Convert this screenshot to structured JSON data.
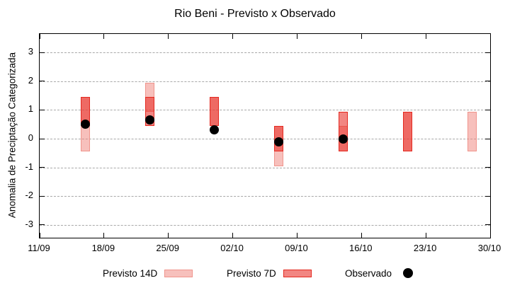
{
  "title": "Rio Beni - Previsto x Observado",
  "legend": {
    "items": [
      {
        "label": "Previsto 14D",
        "swatch": "pink-box"
      },
      {
        "label": "Previsto 7D",
        "swatch": "red-box"
      },
      {
        "label": "Observado",
        "swatch": "black-dot"
      }
    ]
  },
  "colors": {
    "previsto14_fill": "#f7c0bc",
    "previsto14_border": "#f0948c",
    "previsto7_fill": "#f28682",
    "previsto7_border": "#e42920",
    "observado": "#000000",
    "grid": "#a8a8a8",
    "axis": "#000000"
  },
  "chart_data": {
    "type": "bar",
    "subtype": "forecast-range-bars-with-observations",
    "title": "Rio Beni - Previsto x Observado",
    "x_axis": {
      "range_days": [
        0,
        49
      ],
      "ticks": [
        {
          "label": "11/09",
          "day": 0
        },
        {
          "label": "18/09",
          "day": 7
        },
        {
          "label": "25/09",
          "day": 14
        },
        {
          "label": "02/10",
          "day": 21
        },
        {
          "label": "09/10",
          "day": 28
        },
        {
          "label": "16/10",
          "day": 35
        },
        {
          "label": "23/10",
          "day": 42
        },
        {
          "label": "30/10",
          "day": 49
        }
      ]
    },
    "y_axis": {
      "label": "Anomalia de Preciptação Categorizada",
      "ticks": [
        3,
        2,
        1,
        0,
        -1,
        -2,
        -3
      ],
      "range": [
        -3.45,
        3.65
      ],
      "grid": true
    },
    "series": [
      {
        "name": "Previsto 14D",
        "type": "range-bar",
        "points": [
          {
            "date": "16/09",
            "day": 5,
            "high": 1.45,
            "low": -0.45
          },
          {
            "date": "23/09",
            "day": 12,
            "high": 1.95,
            "low": 0.95
          },
          {
            "date": "30/09",
            "day": 19,
            "high": 1.45,
            "low": 0.45
          },
          {
            "date": "07/10",
            "day": 26,
            "high": 0.45,
            "low": -0.95
          },
          {
            "date": "14/10",
            "day": 33,
            "high": 0.45,
            "low": -0.45
          },
          {
            "date": "21/10",
            "day": 40,
            "high": 0.95,
            "low": -0.45
          },
          {
            "date": "28/10",
            "day": 47,
            "high": 0.95,
            "low": -0.45
          }
        ]
      },
      {
        "name": "Previsto 7D",
        "type": "range-bar",
        "points": [
          {
            "date": "16/09",
            "day": 5,
            "high": 1.45,
            "low": 0.45
          },
          {
            "date": "23/09",
            "day": 12,
            "high": 1.45,
            "low": 0.45
          },
          {
            "date": "30/09",
            "day": 19,
            "high": 1.45,
            "low": 0.45
          },
          {
            "date": "07/10",
            "day": 26,
            "high": 0.45,
            "low": -0.45
          },
          {
            "date": "14/10",
            "day": 33,
            "high": 0.95,
            "low": -0.45
          },
          {
            "date": "21/10",
            "day": 40,
            "high": 0.95,
            "low": -0.45
          }
        ]
      },
      {
        "name": "Observado",
        "type": "scatter",
        "points": [
          {
            "date": "16/09",
            "day": 5,
            "value": 0.5
          },
          {
            "date": "23/09",
            "day": 12,
            "value": 0.65
          },
          {
            "date": "30/09",
            "day": 19,
            "value": 0.3
          },
          {
            "date": "07/10",
            "day": 26,
            "value": -0.1
          },
          {
            "date": "14/10",
            "day": 33,
            "value": 0.0
          }
        ]
      }
    ]
  }
}
